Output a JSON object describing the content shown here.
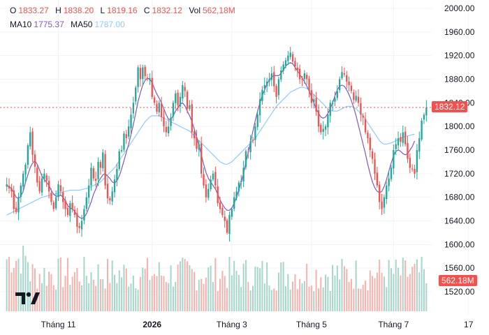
{
  "legend": {
    "o_label": "O",
    "o_value": "1833.27",
    "h_label": "H",
    "h_value": "1838.20",
    "l_label": "L",
    "l_value": "1819.16",
    "c_label": "C",
    "c_value": "1832.12",
    "vol_label": "Vol",
    "vol_value": "562,18M",
    "ma10_label": "MA10",
    "ma10_value": "1775.37",
    "ma50_label": "MA50",
    "ma50_value": "1787.00"
  },
  "price_tag": "1832.12",
  "volume_tag": "562.18M",
  "colors": {
    "up": "#26a69a",
    "down": "#ef5350",
    "ma10": "#7e57c2",
    "ma50": "#90caf9",
    "grid": "#f0f3fa",
    "axis_text": "#131722"
  },
  "logo_icon": "tradingview-logo-icon",
  "chart_data": {
    "type": "candlestick",
    "y_axis": {
      "ticks": [
        2000,
        1960,
        1920,
        1880,
        1840,
        1800,
        1760,
        1720,
        1680,
        1640,
        1600,
        1560,
        1520
      ],
      "labels": [
        "2000.00",
        "1960.00",
        "1920.00",
        "1880.00",
        "1840.00",
        "1800.00",
        "1760.00",
        "1720.00",
        "1680.00",
        "1640.00",
        "1600.00",
        "1560.00",
        "1520.00"
      ],
      "range": [
        1510,
        2010
      ]
    },
    "x_axis": {
      "labels": [
        "Tháng 11",
        "2026",
        "Tháng 3",
        "Tháng 5",
        "Tháng 7",
        "17"
      ],
      "bold": [
        false,
        true,
        false,
        false,
        false,
        false
      ],
      "label_index": [
        22,
        62,
        96,
        130,
        165,
        197
      ]
    },
    "last_price": 1832.12,
    "close": [
      1702,
      1695,
      1690,
      1660,
      1655,
      1680,
      1700,
      1720,
      1735,
      1768,
      1790,
      1752,
      1732,
      1705,
      1690,
      1712,
      1720,
      1708,
      1690,
      1672,
      1660,
      1680,
      1702,
      1690,
      1672,
      1660,
      1650,
      1670,
      1660,
      1650,
      1630,
      1628,
      1640,
      1660,
      1680,
      1700,
      1730,
      1712,
      1708,
      1740,
      1730,
      1756,
      1700,
      1678,
      1675,
      1690,
      1710,
      1728,
      1758,
      1760,
      1788,
      1780,
      1800,
      1820,
      1840,
      1866,
      1900,
      1880,
      1900,
      1885,
      1880,
      1882,
      1850,
      1840,
      1825,
      1840,
      1816,
      1800,
      1790,
      1800,
      1815,
      1840,
      1856,
      1836,
      1850,
      1870,
      1860,
      1830,
      1836,
      1790,
      1780,
      1762,
      1770,
      1720,
      1700,
      1680,
      1694,
      1710,
      1720,
      1700,
      1670,
      1660,
      1650,
      1640,
      1620,
      1650,
      1660,
      1680,
      1690,
      1705,
      1708,
      1730,
      1758,
      1756,
      1775,
      1776,
      1800,
      1820,
      1846,
      1862,
      1870,
      1876,
      1880,
      1890,
      1868,
      1850,
      1880,
      1895,
      1905,
      1912,
      1920,
      1925,
      1910,
      1902,
      1895,
      1880,
      1880,
      1890,
      1880,
      1860,
      1840,
      1846,
      1825,
      1800,
      1790,
      1796,
      1800,
      1820,
      1840,
      1840,
      1848,
      1860,
      1880,
      1892,
      1888,
      1876,
      1870,
      1860,
      1845,
      1852,
      1840,
      1820,
      1815,
      1790,
      1780,
      1760,
      1745,
      1720,
      1700,
      1672,
      1660,
      1680,
      1700,
      1712,
      1730,
      1760,
      1770,
      1780,
      1774,
      1790,
      1770,
      1745,
      1730,
      1728,
      1720,
      1760,
      1780,
      1810,
      1820,
      1832.12
    ],
    "volume_tag_value": 562.18,
    "volume_range_M": [
      0,
      1400
    ],
    "ma10": [
      1700,
      1698,
      1695,
      1688,
      1680,
      1678,
      1682,
      1690,
      1705,
      1718,
      1730,
      1738,
      1742,
      1736,
      1726,
      1716,
      1710,
      1705,
      1700,
      1692,
      1685,
      1682,
      1682,
      1684,
      1680,
      1674,
      1666,
      1662,
      1660,
      1656,
      1650,
      1646,
      1644,
      1646,
      1652,
      1662,
      1672,
      1685,
      1694,
      1705,
      1712,
      1718,
      1720,
      1716,
      1712,
      1706,
      1704,
      1708,
      1716,
      1728,
      1742,
      1756,
      1770,
      1786,
      1803,
      1822,
      1842,
      1857,
      1870,
      1878,
      1882,
      1880,
      1874,
      1864,
      1855,
      1848,
      1840,
      1830,
      1820,
      1812,
      1812,
      1818,
      1826,
      1832,
      1838,
      1840,
      1835,
      1826,
      1818,
      1808,
      1796,
      1782,
      1768,
      1752,
      1736,
      1722,
      1712,
      1706,
      1700,
      1694,
      1685,
      1676,
      1668,
      1662,
      1658,
      1658,
      1662,
      1670,
      1680,
      1692,
      1706,
      1720,
      1738,
      1756,
      1774,
      1792,
      1810,
      1826,
      1840,
      1852,
      1862,
      1872,
      1878,
      1884,
      1886,
      1886,
      1886,
      1890,
      1896,
      1902,
      1906,
      1908,
      1906,
      1900,
      1894,
      1888,
      1882,
      1876,
      1868,
      1860,
      1850,
      1840,
      1830,
      1822,
      1816,
      1814,
      1816,
      1822,
      1830,
      1840,
      1852,
      1862,
      1868,
      1870,
      1868,
      1862,
      1854,
      1844,
      1832,
      1818,
      1802,
      1786,
      1770,
      1754,
      1736,
      1720,
      1706,
      1696,
      1690,
      1688,
      1690,
      1698,
      1710,
      1724,
      1738,
      1750,
      1758,
      1760,
      1758,
      1754,
      1752,
      1754,
      1760,
      1766,
      1775.37
    ],
    "ma50": [
      1650,
      1652,
      1654,
      1656,
      1658,
      1660,
      1662,
      1664,
      1666,
      1668,
      1670,
      1672,
      1674,
      1676,
      1678,
      1680,
      1681,
      1682,
      1683,
      1684,
      1685,
      1686,
      1687,
      1688,
      1689,
      1690,
      1691,
      1692,
      1692,
      1692,
      1692,
      1692,
      1693,
      1694,
      1695,
      1696,
      1698,
      1700,
      1702,
      1704,
      1706,
      1710,
      1714,
      1718,
      1722,
      1726,
      1730,
      1736,
      1742,
      1748,
      1754,
      1760,
      1766,
      1772,
      1778,
      1784,
      1790,
      1796,
      1802,
      1808,
      1812,
      1816,
      1818,
      1818,
      1818,
      1818,
      1816,
      1814,
      1812,
      1810,
      1808,
      1806,
      1804,
      1802,
      1800,
      1798,
      1796,
      1794,
      1792,
      1788,
      1784,
      1780,
      1776,
      1772,
      1768,
      1764,
      1760,
      1756,
      1752,
      1748,
      1744,
      1740,
      1738,
      1736,
      1736,
      1738,
      1740,
      1744,
      1748,
      1752,
      1756,
      1760,
      1764,
      1768,
      1772,
      1776,
      1780,
      1786,
      1792,
      1798,
      1804,
      1810,
      1816,
      1822,
      1828,
      1834,
      1838,
      1842,
      1846,
      1850,
      1854,
      1858,
      1860,
      1862,
      1864,
      1866,
      1866,
      1866,
      1864,
      1862,
      1858,
      1854,
      1850,
      1846,
      1842,
      1838,
      1834,
      1830,
      1828,
      1826,
      1826,
      1826,
      1828,
      1830,
      1832,
      1834,
      1834,
      1834,
      1832,
      1830,
      1826,
      1822,
      1818,
      1812,
      1806,
      1800,
      1794,
      1788,
      1782,
      1776,
      1772,
      1770,
      1770,
      1771,
      1772,
      1774,
      1776,
      1778,
      1780,
      1782,
      1783,
      1784,
      1785,
      1786,
      1787.0
    ]
  }
}
